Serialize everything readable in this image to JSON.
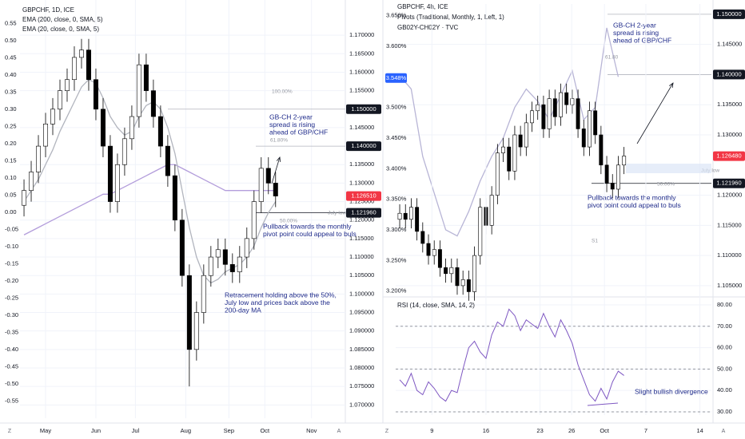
{
  "toolbar": [
    "Z",
    "A",
    "Z",
    "A"
  ],
  "chart_data": [
    {
      "type": "candlestick",
      "title": "GBPCHF, 1D, ICE",
      "up_color": "#ffffff",
      "down_color": "#000000",
      "open": [
        1.124,
        1.128,
        1.133,
        1.14,
        1.146,
        1.15,
        1.155,
        1.158,
        1.164,
        1.166,
        1.158,
        1.15,
        1.14,
        1.125,
        1.135,
        1.142,
        1.148,
        1.162,
        1.155,
        1.148,
        1.14,
        1.132,
        1.12,
        1.105,
        1.085,
        1.095,
        1.105,
        1.11,
        1.112,
        1.108,
        1.106,
        1.11,
        1.115,
        1.125,
        1.134,
        1.13
      ],
      "high": [
        1.131,
        1.136,
        1.143,
        1.149,
        1.153,
        1.158,
        1.161,
        1.167,
        1.169,
        1.169,
        1.161,
        1.153,
        1.143,
        1.138,
        1.145,
        1.151,
        1.165,
        1.165,
        1.158,
        1.151,
        1.143,
        1.135,
        1.123,
        1.108,
        1.098,
        1.108,
        1.113,
        1.115,
        1.115,
        1.111,
        1.113,
        1.118,
        1.128,
        1.137,
        1.137,
        1.133
      ],
      "low": [
        1.121,
        1.125,
        1.13,
        1.137,
        1.143,
        1.147,
        1.152,
        1.155,
        1.161,
        1.155,
        1.147,
        1.137,
        1.122,
        1.122,
        1.132,
        1.139,
        1.145,
        1.152,
        1.145,
        1.137,
        1.129,
        1.117,
        1.102,
        1.075,
        1.082,
        1.092,
        1.102,
        1.107,
        1.105,
        1.103,
        1.103,
        1.107,
        1.112,
        1.122,
        1.127,
        1.1235
      ],
      "close": [
        1.128,
        1.133,
        1.14,
        1.146,
        1.15,
        1.155,
        1.158,
        1.164,
        1.166,
        1.158,
        1.15,
        1.14,
        1.125,
        1.135,
        1.142,
        1.148,
        1.162,
        1.155,
        1.148,
        1.14,
        1.132,
        1.12,
        1.105,
        1.085,
        1.095,
        1.105,
        1.11,
        1.112,
        1.108,
        1.106,
        1.11,
        1.115,
        1.125,
        1.134,
        1.13,
        1.1265
      ],
      "series": [
        {
          "name": "EMA (200, close, 0, SMA, 5)",
          "color": "#b39ddb",
          "values": [
            1.116,
            1.117,
            1.118,
            1.119,
            1.12,
            1.121,
            1.122,
            1.123,
            1.124,
            1.125,
            1.126,
            1.127,
            1.127,
            1.128,
            1.129,
            1.13,
            1.131,
            1.132,
            1.133,
            1.134,
            1.135,
            1.135,
            1.134,
            1.133,
            1.132,
            1.131,
            1.13,
            1.129,
            1.128,
            1.128,
            1.128,
            1.128,
            1.128,
            1.128,
            1.128,
            1.128
          ]
        },
        {
          "name": "EMA (20, close, 0, SMA, 5)",
          "color": "#b2b5be",
          "values": [
            1.125,
            1.128,
            1.131,
            1.135,
            1.139,
            1.144,
            1.148,
            1.152,
            1.156,
            1.158,
            1.157,
            1.153,
            1.148,
            1.145,
            1.143,
            1.144,
            1.148,
            1.151,
            1.152,
            1.15,
            1.145,
            1.138,
            1.128,
            1.118,
            1.11,
            1.105,
            1.103,
            1.104,
            1.106,
            1.107,
            1.108,
            1.11,
            1.113,
            1.118,
            1.122,
            1.125
          ]
        }
      ],
      "xlim": [
        -0.56,
        44.7
      ],
      "xticks": [
        {
          "value": 3,
          "label": "May"
        },
        {
          "value": 10,
          "label": "Jun"
        },
        {
          "value": 15.5,
          "label": "Jul"
        },
        {
          "value": 22.5,
          "label": "Aug"
        },
        {
          "value": 28.5,
          "label": "Sep"
        },
        {
          "value": 33.5,
          "label": "Oct"
        },
        {
          "value": 40,
          "label": "Nov"
        }
      ],
      "ylim": [
        1.0664,
        1.1778
      ],
      "yticks": [
        {
          "value": 1.07,
          "label": "1.070000"
        },
        {
          "value": 1.075,
          "label": "1.075000"
        },
        {
          "value": 1.08,
          "label": "1.080000"
        },
        {
          "value": 1.085,
          "label": "1.085000"
        },
        {
          "value": 1.09,
          "label": "1.090000"
        },
        {
          "value": 1.095,
          "label": "1.095000"
        },
        {
          "value": 1.1,
          "label": "1.100000"
        },
        {
          "value": 1.105,
          "label": "1.105000"
        },
        {
          "value": 1.11,
          "label": "1.110000"
        },
        {
          "value": 1.115,
          "label": "1.115000"
        },
        {
          "value": 1.12,
          "label": "1.120000"
        },
        {
          "value": 1.125,
          "label": "1.125000"
        },
        {
          "value": 1.13,
          "label": "1.130000"
        },
        {
          "value": 1.135,
          "label": "1.135000"
        },
        {
          "value": 1.145,
          "label": "1.145000"
        },
        {
          "value": 1.155,
          "label": "1.155000"
        },
        {
          "value": 1.16,
          "label": "1.160000"
        },
        {
          "value": 1.165,
          "label": "1.165000"
        },
        {
          "value": 1.17,
          "label": "1.170000"
        }
      ],
      "y2lim": [
        -0.6,
        0.6
      ],
      "y2ticks": [
        {
          "value": 0.55,
          "label": "0.55"
        },
        {
          "value": 0.5,
          "label": "0.50"
        },
        {
          "value": 0.45,
          "label": "0.45"
        },
        {
          "value": 0.4,
          "label": "0.40"
        },
        {
          "value": 0.35,
          "label": "0.35"
        },
        {
          "value": 0.3,
          "label": "0.30"
        },
        {
          "value": 0.25,
          "label": "0.25"
        },
        {
          "value": 0.2,
          "label": "0.20"
        },
        {
          "value": 0.15,
          "label": "0.15"
        },
        {
          "value": 0.1,
          "label": "0.10"
        },
        {
          "value": 0.05,
          "label": "0.05"
        },
        {
          "value": 0,
          "label": "0.00"
        },
        {
          "value": -0.05,
          "label": "-0.05"
        },
        {
          "value": -0.1,
          "label": "-0.10"
        },
        {
          "value": -0.15,
          "label": "-0.15"
        },
        {
          "value": -0.2,
          "label": "-0.20"
        },
        {
          "value": -0.25,
          "label": "-0.25"
        },
        {
          "value": -0.3,
          "label": "-0.30"
        },
        {
          "value": -0.35,
          "label": "-0.35"
        },
        {
          "value": -0.4,
          "label": "-0.40"
        },
        {
          "value": -0.45,
          "label": "-0.45"
        },
        {
          "value": -0.5,
          "label": "-0.50"
        },
        {
          "value": -0.55,
          "label": "-0.55"
        }
      ],
      "price_tags": [
        {
          "value": 1.15,
          "label": "1.150000",
          "color": "#131722"
        },
        {
          "value": 1.14,
          "label": "1.140000",
          "color": "#131722"
        },
        {
          "value": 1.12651,
          "label": "1.126510",
          "color": "#f23645"
        },
        {
          "value": 1.12196,
          "label": "1.121960",
          "color": "#131722"
        }
      ],
      "annotations": [
        [
          "GB-CH 2-year",
          "spread is rising",
          "ahead of GBP/CHF"
        ],
        [
          "Pullback towards the monthly",
          "pivot point could appeal to buls"
        ],
        [
          "Retracement holding above the 50%,",
          "July low and prices back above the",
          "200-day MA"
        ]
      ],
      "fib_labels": [
        "100.00%",
        "61.80%",
        "50.00%",
        "July low"
      ]
    },
    {
      "type": "candlestick",
      "title": "GBPCHF, 4h, ICE",
      "subtitles": [
        "Pivots (Traditional, Monthly, 1, Left, 1)",
        "GB02Y-CH02Y · TVC"
      ],
      "up_color": "#ffffff",
      "down_color": "#000000",
      "open": [
        1.116,
        1.117,
        1.116,
        1.118,
        1.114,
        1.112,
        1.11,
        1.111,
        1.108,
        1.107,
        1.108,
        1.105,
        1.106,
        1.104,
        1.11,
        1.118,
        1.115,
        1.12,
        1.127,
        1.128,
        1.124,
        1.13,
        1.128,
        1.132,
        1.134,
        1.135,
        1.131,
        1.136,
        1.133,
        1.137,
        1.135,
        1.136,
        1.131,
        1.128,
        1.134,
        1.13,
        1.125,
        1.122,
        1.121,
        1.125
      ],
      "high": [
        1.1185,
        1.1185,
        1.1195,
        1.1195,
        1.1155,
        1.1135,
        1.1125,
        1.1125,
        1.1095,
        1.1095,
        1.1095,
        1.1075,
        1.1075,
        1.1115,
        1.1195,
        1.1195,
        1.1215,
        1.1285,
        1.1295,
        1.1295,
        1.1315,
        1.1315,
        1.1335,
        1.1355,
        1.1365,
        1.1365,
        1.1375,
        1.1375,
        1.1385,
        1.1385,
        1.1375,
        1.1375,
        1.1325,
        1.1355,
        1.1355,
        1.1315,
        1.1265,
        1.1235,
        1.1265,
        1.128
      ],
      "low": [
        1.1145,
        1.1145,
        1.1145,
        1.1125,
        1.1105,
        1.1085,
        1.1085,
        1.1065,
        1.1055,
        1.1055,
        1.1035,
        1.1035,
        1.1025,
        1.1025,
        1.1085,
        1.1135,
        1.1135,
        1.1185,
        1.1255,
        1.1225,
        1.1225,
        1.1265,
        1.1265,
        1.1305,
        1.1325,
        1.1295,
        1.1295,
        1.1315,
        1.1315,
        1.1335,
        1.1335,
        1.1295,
        1.1265,
        1.1265,
        1.1285,
        1.1235,
        1.1205,
        1.1195,
        1.1195,
        1.1235
      ],
      "close": [
        1.117,
        1.116,
        1.118,
        1.114,
        1.112,
        1.11,
        1.111,
        1.108,
        1.107,
        1.108,
        1.105,
        1.106,
        1.104,
        1.11,
        1.118,
        1.115,
        1.12,
        1.127,
        1.128,
        1.124,
        1.13,
        1.128,
        1.132,
        1.134,
        1.135,
        1.131,
        1.136,
        1.133,
        1.137,
        1.135,
        1.136,
        1.131,
        1.128,
        1.134,
        1.13,
        1.125,
        1.122,
        1.121,
        1.125,
        1.1265
      ],
      "series": [
        {
          "color": "#b8b5d6",
          "axis": "y2",
          "x": [
            0,
            2,
            4,
            6,
            8,
            10,
            12,
            14,
            16,
            18,
            20,
            22,
            24,
            26,
            28,
            30,
            32,
            34,
            36,
            38
          ],
          "values": [
            3.552,
            3.53,
            3.42,
            3.36,
            3.3,
            3.29,
            3.33,
            3.38,
            3.42,
            3.45,
            3.5,
            3.53,
            3.51,
            3.48,
            3.52,
            3.56,
            3.48,
            3.5,
            3.63,
            3.55
          ]
        }
      ],
      "xlim": [
        -0.7,
        54.2
      ],
      "ylim": [
        1.1034,
        1.1517
      ],
      "yticks": [
        {
          "value": 1.105,
          "label": "1.105000"
        },
        {
          "value": 1.11,
          "label": "1.110000"
        },
        {
          "value": 1.115,
          "label": "1.115000"
        },
        {
          "value": 1.12,
          "label": "1.120000"
        },
        {
          "value": 1.13,
          "label": "1.130000"
        },
        {
          "value": 1.135,
          "label": "1.135000"
        },
        {
          "value": 1.145,
          "label": "1.145000"
        }
      ],
      "y2lim": [
        3.193,
        3.669
      ],
      "y2ticks": [
        {
          "value": 3.2,
          "label": "3.200%"
        },
        {
          "value": 3.25,
          "label": "3.250%"
        },
        {
          "value": 3.3,
          "label": "3.300%"
        },
        {
          "value": 3.35,
          "label": "3.350%"
        },
        {
          "value": 3.4,
          "label": "3.400%"
        },
        {
          "value": 3.45,
          "label": "3.450%"
        },
        {
          "value": 3.5,
          "label": "3.500%"
        },
        {
          "value": 3.6,
          "label": "3.600%"
        },
        {
          "value": 3.65,
          "label": "3.650%"
        }
      ],
      "price_tags": [
        {
          "value": 1.15,
          "label": "1.150000",
          "color": "#131722"
        },
        {
          "value": 1.14,
          "label": "1.140000",
          "color": "#131722"
        },
        {
          "value": 1.12648,
          "label": "1.126480",
          "color": "#f23645"
        },
        {
          "value": 1.12196,
          "label": "1.121960",
          "color": "#131722"
        }
      ],
      "y2_tags": [
        {
          "value": 3.548,
          "label": "3.548%",
          "color": "#2962ff"
        }
      ],
      "annotations": [
        [
          "GB-CH 2-year",
          "spread is rising",
          "ahead of GBP/CHF"
        ],
        [
          "Pullback towards the monthly",
          "pivot point could appeal to buls"
        ]
      ],
      "fib_labels": [
        "61.80",
        "50.00%",
        "S1",
        "July low"
      ]
    },
    {
      "type": "line",
      "title": "RSI (14, close, SMA, 14, 2)",
      "series": [
        {
          "color": "#7e57c2",
          "values": [
            45,
            42,
            48,
            40,
            38,
            44,
            41,
            37,
            35,
            40,
            39,
            50,
            60,
            63,
            58,
            55,
            66,
            72,
            70,
            78,
            75,
            68,
            73,
            71,
            69,
            76,
            70,
            65,
            73,
            68,
            62,
            52,
            45,
            38,
            35,
            41,
            36,
            44,
            49,
            47
          ]
        }
      ],
      "xlim": [
        -0.7,
        54.2
      ],
      "xticks": [
        {
          "value": 5.6,
          "label": "9"
        },
        {
          "value": 15,
          "label": "16"
        },
        {
          "value": 24.4,
          "label": "23"
        },
        {
          "value": 29.9,
          "label": "26"
        },
        {
          "value": 35.6,
          "label": "Oct"
        },
        {
          "value": 42.8,
          "label": "7"
        },
        {
          "value": 52.2,
          "label": "14"
        }
      ],
      "ylim": [
        28.5,
        82.6
      ],
      "yticks": [
        {
          "value": 30,
          "label": "30.00"
        },
        {
          "value": 40,
          "label": "40.00"
        },
        {
          "value": 50,
          "label": "50.00"
        },
        {
          "value": 60,
          "label": "60.00"
        },
        {
          "value": 70,
          "label": "70.00"
        },
        {
          "value": 80,
          "label": "80.00"
        }
      ],
      "levels": [
        70,
        50,
        30
      ],
      "annotations": [
        [
          "Slight bullish divergence"
        ]
      ]
    }
  ]
}
